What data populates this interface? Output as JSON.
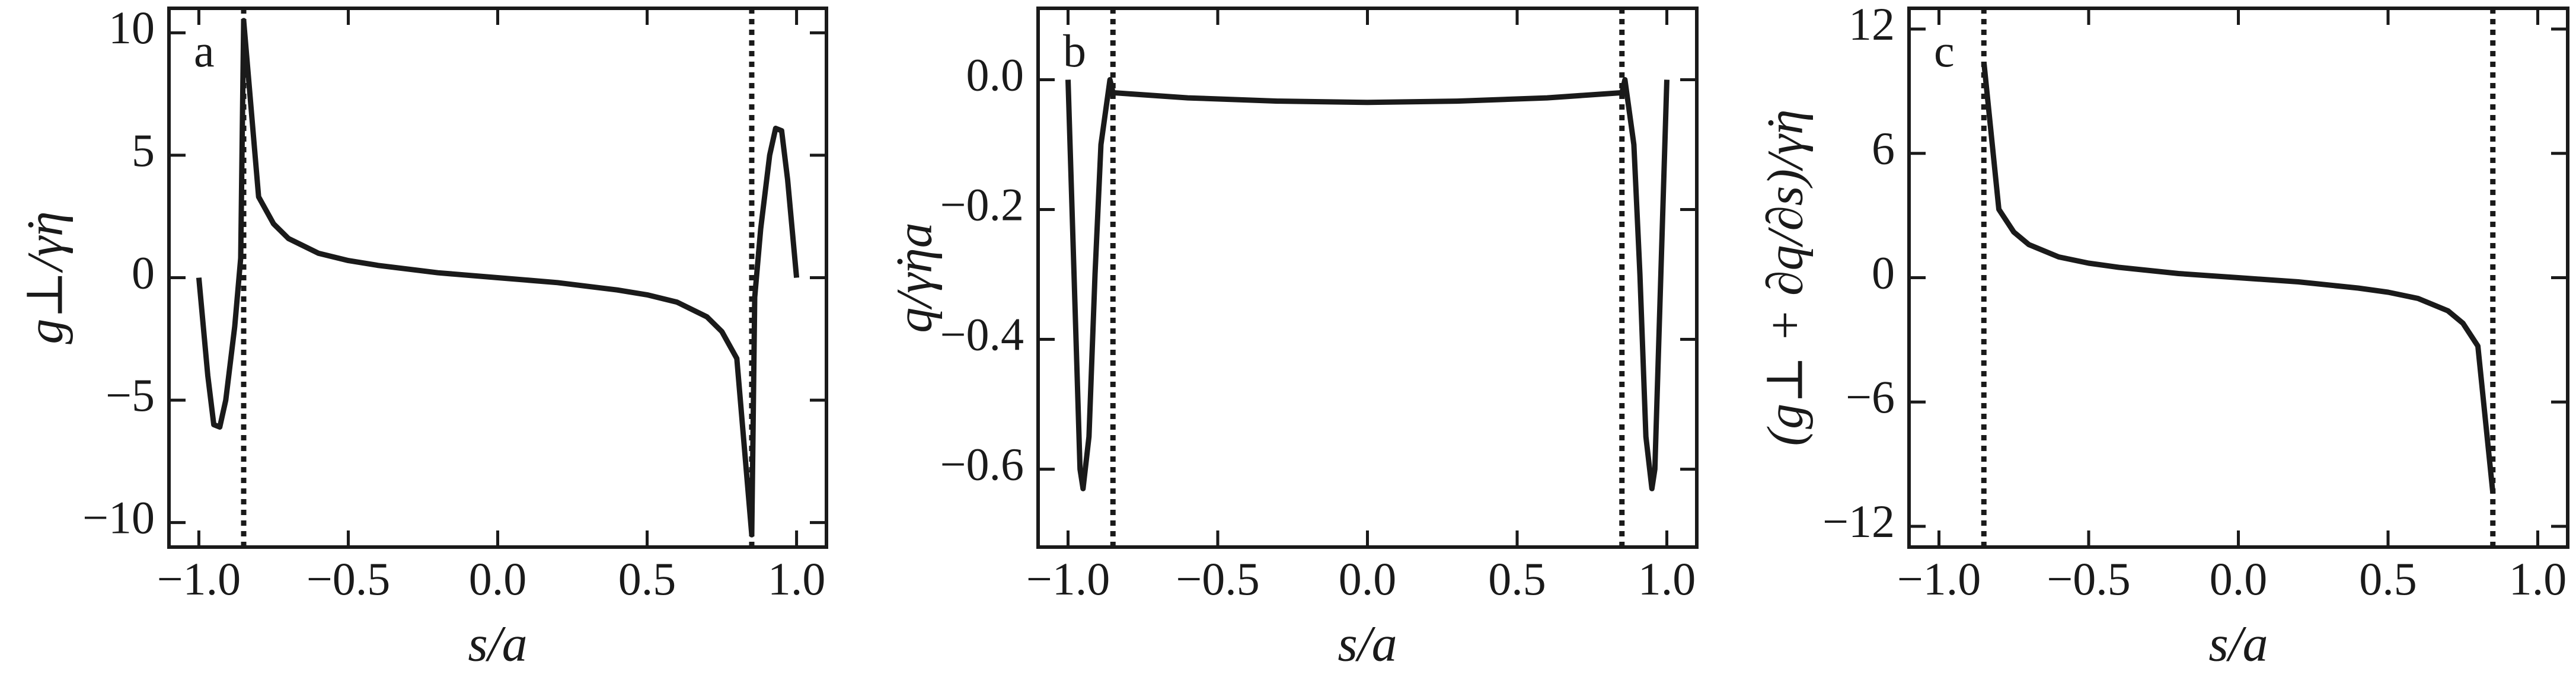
{
  "chart_data": [
    {
      "type": "line",
      "panel_label": "a",
      "xlabel": "s/a",
      "ylabel": "g⊥/γ̇η",
      "x": [
        -1.0,
        -0.97,
        -0.95,
        -0.93,
        -0.91,
        -0.88,
        -0.86,
        -0.85,
        -0.8,
        -0.75,
        -0.7,
        -0.6,
        -0.5,
        -0.4,
        -0.2,
        0,
        0.2,
        0.4,
        0.5,
        0.6,
        0.7,
        0.75,
        0.8,
        0.85,
        0.86,
        0.88,
        0.91,
        0.93,
        0.95,
        0.97,
        1.0
      ],
      "values": [
        0,
        -4,
        -6.0,
        -6.1,
        -5,
        -2,
        0.8,
        10.5,
        3.3,
        2.2,
        1.6,
        1.0,
        0.7,
        0.5,
        0.2,
        0,
        -0.2,
        -0.5,
        -0.7,
        -1.0,
        -1.6,
        -2.2,
        -3.3,
        -10.5,
        -0.8,
        2,
        5,
        6.1,
        6.0,
        4,
        0
      ],
      "color": "#1a1a1a",
      "vlines": [
        -0.85,
        0.85
      ],
      "xlim": [
        -1.1,
        1.1
      ],
      "ylim": [
        -11,
        11
      ],
      "xticks": [
        {
          "value": -1,
          "label": "−1.0"
        },
        {
          "value": -0.5,
          "label": "−0.5"
        },
        {
          "value": 0,
          "label": "0.0"
        },
        {
          "value": 0.5,
          "label": "0.5"
        },
        {
          "value": 1,
          "label": "1.0"
        }
      ],
      "yticks": [
        {
          "value": -10,
          "label": "−10"
        },
        {
          "value": -5,
          "label": "−5"
        },
        0,
        5,
        10
      ]
    },
    {
      "type": "line",
      "panel_label": "b",
      "xlabel": "s/a",
      "ylabel": "q/γ̇ηa",
      "x": [
        -1.0,
        -0.98,
        -0.96,
        -0.95,
        -0.93,
        -0.91,
        -0.89,
        -0.86,
        -0.85,
        -0.6,
        -0.3,
        0,
        0.3,
        0.6,
        0.85,
        0.86,
        0.89,
        0.91,
        0.93,
        0.95,
        0.96,
        0.98,
        1.0
      ],
      "values": [
        0,
        -0.3,
        -0.6,
        -0.63,
        -0.55,
        -0.3,
        -0.1,
        0,
        -0.02,
        -0.028,
        -0.033,
        -0.035,
        -0.033,
        -0.028,
        -0.02,
        0,
        -0.1,
        -0.3,
        -0.55,
        -0.63,
        -0.6,
        -0.3,
        0
      ],
      "color": "#1a1a1a",
      "vlines": [
        -0.85,
        0.85
      ],
      "xlim": [
        -1.1,
        1.1
      ],
      "ylim": [
        -0.72,
        0.11
      ],
      "xticks": [
        {
          "value": -1,
          "label": "−1.0"
        },
        {
          "value": -0.5,
          "label": "−0.5"
        },
        {
          "value": 0,
          "label": "0.0"
        },
        {
          "value": 0.5,
          "label": "0.5"
        },
        {
          "value": 1,
          "label": "1.0"
        }
      ],
      "yticks": [
        {
          "value": 0,
          "label": "0.0"
        },
        {
          "value": -0.2,
          "label": "−0.2"
        },
        {
          "value": -0.4,
          "label": "−0.4"
        },
        {
          "value": -0.6,
          "label": "−0.6"
        }
      ]
    },
    {
      "type": "line",
      "panel_label": "c",
      "xlabel": "s/a",
      "ylabel": "(g⊥ + ∂q/∂s)/γ̇η",
      "x": [
        -0.85,
        -0.8,
        -0.75,
        -0.7,
        -0.6,
        -0.5,
        -0.4,
        -0.2,
        0,
        0.2,
        0.4,
        0.5,
        0.6,
        0.7,
        0.75,
        0.8,
        0.85
      ],
      "values": [
        10.4,
        3.3,
        2.2,
        1.6,
        1.0,
        0.7,
        0.5,
        0.2,
        0,
        -0.2,
        -0.5,
        -0.7,
        -1.0,
        -1.6,
        -2.2,
        -3.3,
        -10.4
      ],
      "color": "#1a1a1a",
      "vlines": [
        -0.85,
        0.85
      ],
      "xlim": [
        -1.1,
        1.1
      ],
      "ylim": [
        -13,
        13
      ],
      "xticks": [
        {
          "value": -1,
          "label": "−1.0"
        },
        {
          "value": -0.5,
          "label": "−0.5"
        },
        {
          "value": 0,
          "label": "0.0"
        },
        {
          "value": 0.5,
          "label": "0.5"
        },
        {
          "value": 1,
          "label": "1.0"
        }
      ],
      "yticks": [
        {
          "value": -12,
          "label": "−12"
        },
        {
          "value": -6,
          "label": "−6"
        },
        0,
        6,
        12
      ]
    }
  ]
}
